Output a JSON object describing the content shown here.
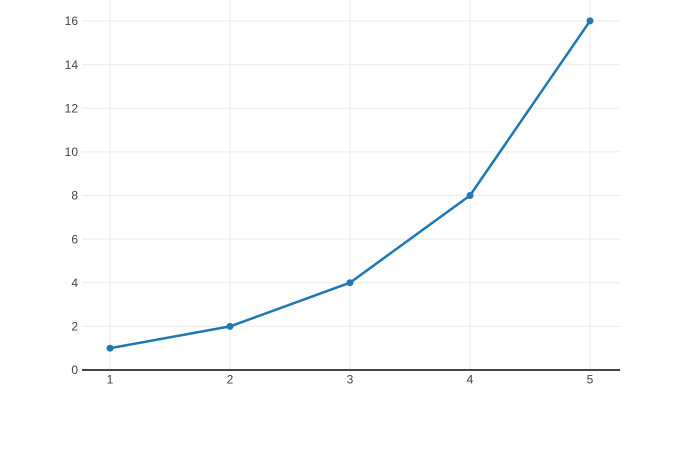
{
  "page": {
    "background_color": "#ffffff"
  },
  "chart_data": {
    "type": "line",
    "title": "",
    "xlabel": "",
    "ylabel": "",
    "x": [
      1,
      2,
      3,
      4,
      5
    ],
    "y": [
      1,
      2,
      4,
      8,
      16
    ],
    "series": [
      {
        "name": "",
        "color": "#1f77b4",
        "line_width": 2.5,
        "marker": "circle",
        "marker_size": 7,
        "x": [
          1,
          2,
          3,
          4,
          5
        ],
        "y": [
          1,
          2,
          4,
          8,
          16
        ]
      }
    ],
    "x_ticks": [
      1,
      2,
      3,
      4,
      5
    ],
    "y_ticks": [
      0,
      2,
      4,
      6,
      8,
      10,
      12,
      14,
      16
    ],
    "xlim": [
      0.767,
      5.25
    ],
    "ylim": [
      0,
      16.96
    ],
    "grid": true,
    "legend_position": "none",
    "grid_color": "#ebebeb",
    "zeroline_color": "#444444",
    "zeroline_width": 2,
    "tick_label_color": "#444444",
    "tick_font_size": 12
  }
}
